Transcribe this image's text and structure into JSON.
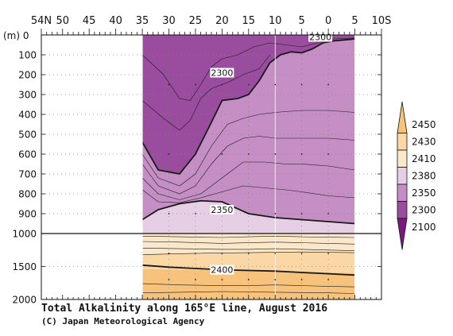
{
  "chart_data": {
    "type": "heatmap",
    "title": "Total Alkalinity along 165°E line, August 2016",
    "credit": "(C) Japan Meteorological Agency",
    "xaxis": {
      "label": "",
      "ticks": [
        {
          "value": 54,
          "label": "54N"
        },
        {
          "value": 50,
          "label": "50"
        },
        {
          "value": 45,
          "label": "45"
        },
        {
          "value": 40,
          "label": "40"
        },
        {
          "value": 35,
          "label": "35"
        },
        {
          "value": 30,
          "label": "30"
        },
        {
          "value": 25,
          "label": "25"
        },
        {
          "value": 20,
          "label": "20"
        },
        {
          "value": 15,
          "label": "15"
        },
        {
          "value": 10,
          "label": "10"
        },
        {
          "value": 5,
          "label": "5"
        },
        {
          "value": 0,
          "label": "0"
        },
        {
          "value": -5,
          "label": "5"
        },
        {
          "value": -10,
          "label": "10S"
        }
      ],
      "range": [
        54,
        -10
      ]
    },
    "yaxis": {
      "unit_label": "(m)",
      "ticks": [
        "0",
        "100",
        "200",
        "300",
        "400",
        "500",
        "600",
        "700",
        "800",
        "900",
        "1000",
        "1500",
        "2000"
      ],
      "range": [
        0,
        2000
      ],
      "break_at": 1000
    },
    "data_extent_lat": [
      35,
      -5
    ],
    "colorbar": {
      "levels": [
        "2450",
        "2430",
        "2410",
        "2380",
        "2350",
        "2300",
        "2100"
      ],
      "colors": [
        "#f6c27c",
        "#fad7a4",
        "#fbe7c9",
        "#e6cfe4",
        "#c58ec5",
        "#9a4c9e",
        "#7b1a7e"
      ]
    },
    "contour_labels": [
      {
        "lat": 1.5,
        "depth": 10,
        "text": "2300"
      },
      {
        "lat": 20,
        "depth": 190,
        "text": "2300"
      },
      {
        "lat": 20,
        "depth": 880,
        "text": "2350"
      },
      {
        "lat": 20,
        "depth": 1550,
        "text": "2400"
      }
    ],
    "sections": [
      {
        "name": "2300-core",
        "value": 2300,
        "boundary": [
          [
            35,
            0
          ],
          [
            35,
            540
          ],
          [
            32,
            680
          ],
          [
            28,
            700
          ],
          [
            25,
            600
          ],
          [
            22,
            440
          ],
          [
            20,
            330
          ],
          [
            17,
            320
          ],
          [
            15,
            300
          ],
          [
            13,
            230
          ],
          [
            11,
            140
          ],
          [
            9,
            100
          ],
          [
            7,
            85
          ],
          [
            5,
            90
          ],
          [
            3,
            70
          ],
          [
            1,
            40
          ],
          [
            -1,
            30
          ],
          [
            -3,
            25
          ],
          [
            -5,
            20
          ],
          [
            -5,
            0
          ]
        ]
      },
      {
        "name": "2350-interval",
        "value": 2350,
        "boundary": [
          [
            35,
            540
          ],
          [
            35,
            930
          ],
          [
            32,
            880
          ],
          [
            28,
            850
          ],
          [
            24,
            835
          ],
          [
            20,
            840
          ],
          [
            15,
            900
          ],
          [
            10,
            920
          ],
          [
            5,
            930
          ],
          [
            0,
            940
          ],
          [
            -5,
            950
          ],
          [
            -5,
            20
          ],
          [
            -3,
            25
          ],
          [
            -1,
            30
          ],
          [
            1,
            40
          ],
          [
            3,
            70
          ],
          [
            5,
            90
          ],
          [
            7,
            85
          ],
          [
            9,
            100
          ],
          [
            11,
            140
          ],
          [
            13,
            230
          ],
          [
            15,
            300
          ],
          [
            17,
            320
          ],
          [
            20,
            330
          ],
          [
            22,
            440
          ],
          [
            25,
            600
          ],
          [
            28,
            700
          ],
          [
            32,
            680
          ]
        ]
      },
      {
        "name": "2380-interval",
        "value": 2380,
        "boundary": [
          [
            35,
            930
          ],
          [
            35,
            1000
          ],
          [
            -5,
            1000
          ],
          [
            -5,
            950
          ],
          [
            0,
            940
          ],
          [
            5,
            930
          ],
          [
            10,
            920
          ],
          [
            15,
            900
          ],
          [
            20,
            840
          ],
          [
            24,
            835
          ],
          [
            28,
            850
          ],
          [
            32,
            880
          ]
        ]
      },
      {
        "name": "2410-deep",
        "value": 2410,
        "boundary": [
          [
            35,
            1000
          ],
          [
            35,
            1320
          ],
          [
            25,
            1300
          ],
          [
            15,
            1290
          ],
          [
            5,
            1280
          ],
          [
            -5,
            1290
          ],
          [
            -5,
            1000
          ]
        ]
      },
      {
        "name": "2430-deep",
        "value": 2430,
        "boundary": [
          [
            35,
            1320
          ],
          [
            35,
            1540
          ],
          [
            25,
            1550
          ],
          [
            15,
            1560
          ],
          [
            5,
            1580
          ],
          [
            -5,
            1600
          ],
          [
            -5,
            1290
          ],
          [
            5,
            1280
          ],
          [
            15,
            1290
          ],
          [
            25,
            1300
          ]
        ]
      },
      {
        "name": "2450-deep",
        "value": 2450,
        "boundary": [
          [
            35,
            1540
          ],
          [
            35,
            2000
          ],
          [
            -5,
            2000
          ],
          [
            -5,
            1600
          ],
          [
            5,
            1580
          ],
          [
            15,
            1560
          ],
          [
            25,
            1550
          ]
        ]
      }
    ],
    "contours": [
      {
        "name": "contour-2300",
        "bold": true,
        "points": [
          [
            35,
            540
          ],
          [
            32,
            680
          ],
          [
            28,
            700
          ],
          [
            25,
            600
          ],
          [
            22,
            440
          ],
          [
            20,
            330
          ],
          [
            17,
            320
          ],
          [
            15,
            300
          ],
          [
            13,
            230
          ],
          [
            11,
            140
          ],
          [
            9,
            100
          ],
          [
            7,
            85
          ],
          [
            5,
            90
          ],
          [
            3,
            70
          ],
          [
            1,
            40
          ],
          [
            -1,
            30
          ],
          [
            -3,
            25
          ],
          [
            -5,
            20
          ]
        ]
      },
      {
        "name": "contour-2350",
        "bold": true,
        "points": [
          [
            35,
            930
          ],
          [
            32,
            880
          ],
          [
            28,
            850
          ],
          [
            24,
            835
          ],
          [
            20,
            840
          ],
          [
            15,
            900
          ],
          [
            10,
            920
          ],
          [
            5,
            930
          ],
          [
            0,
            940
          ],
          [
            -5,
            950
          ]
        ]
      },
      {
        "name": "contour-2400",
        "bold": true,
        "points": [
          [
            35,
            1480
          ],
          [
            30,
            1510
          ],
          [
            25,
            1530
          ],
          [
            20,
            1550
          ],
          [
            15,
            1560
          ],
          [
            10,
            1570
          ],
          [
            5,
            1590
          ],
          [
            0,
            1610
          ],
          [
            -5,
            1630
          ]
        ]
      },
      {
        "name": "contour-thin-1",
        "bold": false,
        "points": [
          [
            35,
            100
          ],
          [
            31,
            200
          ],
          [
            28,
            320
          ],
          [
            26,
            330
          ],
          [
            24,
            250
          ],
          [
            22,
            160
          ],
          [
            20,
            120
          ],
          [
            17,
            100
          ],
          [
            14,
            60
          ],
          [
            11,
            40
          ],
          [
            8,
            50
          ],
          [
            5,
            60
          ],
          [
            2,
            40
          ],
          [
            -1,
            20
          ],
          [
            -5,
            15
          ]
        ]
      },
      {
        "name": "contour-thin-2",
        "bold": false,
        "points": [
          [
            35,
            330
          ],
          [
            31,
            420
          ],
          [
            28,
            480
          ],
          [
            26,
            430
          ],
          [
            24,
            320
          ],
          [
            22,
            270
          ],
          [
            19,
            240
          ],
          [
            16,
            200
          ],
          [
            13,
            170
          ],
          [
            11,
            100
          ]
        ]
      },
      {
        "name": "contour-thin-3",
        "bold": false,
        "points": [
          [
            35,
            600
          ],
          [
            32,
            720
          ],
          [
            28,
            760
          ],
          [
            25,
            700
          ],
          [
            22,
            560
          ],
          [
            19,
            450
          ],
          [
            16,
            420
          ],
          [
            13,
            400
          ],
          [
            10,
            390
          ],
          [
            5,
            380
          ],
          [
            0,
            380
          ],
          [
            -5,
            390
          ]
        ]
      },
      {
        "name": "contour-thin-4",
        "bold": false,
        "points": [
          [
            35,
            650
          ],
          [
            32,
            760
          ],
          [
            28,
            800
          ],
          [
            25,
            760
          ],
          [
            22,
            650
          ],
          [
            19,
            560
          ],
          [
            16,
            520
          ],
          [
            13,
            510
          ],
          [
            10,
            520
          ],
          [
            5,
            520
          ],
          [
            0,
            520
          ],
          [
            -5,
            530
          ]
        ]
      },
      {
        "name": "contour-thin-5",
        "bold": false,
        "points": [
          [
            35,
            720
          ],
          [
            32,
            800
          ],
          [
            28,
            830
          ],
          [
            24,
            800
          ],
          [
            20,
            720
          ],
          [
            16,
            640
          ],
          [
            12,
            640
          ],
          [
            8,
            650
          ],
          [
            5,
            650
          ],
          [
            0,
            660
          ],
          [
            -5,
            680
          ]
        ]
      },
      {
        "name": "contour-thin-6",
        "bold": false,
        "points": [
          [
            35,
            780
          ],
          [
            32,
            840
          ],
          [
            28,
            845
          ],
          [
            24,
            820
          ],
          [
            20,
            790
          ],
          [
            16,
            760
          ],
          [
            12,
            770
          ],
          [
            8,
            780
          ],
          [
            5,
            790
          ],
          [
            0,
            810
          ],
          [
            -5,
            820
          ]
        ]
      },
      {
        "name": "contour-thin-7",
        "bold": false,
        "points": [
          [
            35,
            1040
          ],
          [
            28,
            1050
          ],
          [
            20,
            1060
          ],
          [
            15,
            1050
          ],
          [
            10,
            1040
          ],
          [
            5,
            1050
          ],
          [
            0,
            1055
          ],
          [
            -5,
            1060
          ]
        ]
      },
      {
        "name": "contour-thin-8",
        "bold": false,
        "points": [
          [
            35,
            1120
          ],
          [
            28,
            1130
          ],
          [
            20,
            1150
          ],
          [
            15,
            1140
          ],
          [
            10,
            1130
          ],
          [
            5,
            1140
          ],
          [
            0,
            1150
          ],
          [
            -5,
            1160
          ]
        ]
      },
      {
        "name": "contour-thin-9",
        "bold": false,
        "points": [
          [
            35,
            1220
          ],
          [
            28,
            1230
          ],
          [
            20,
            1240
          ],
          [
            15,
            1240
          ],
          [
            10,
            1230
          ],
          [
            5,
            1240
          ],
          [
            0,
            1250
          ],
          [
            -5,
            1260
          ]
        ]
      },
      {
        "name": "contour-thin-10",
        "bold": false,
        "points": [
          [
            35,
            1320
          ],
          [
            25,
            1300
          ],
          [
            15,
            1290
          ],
          [
            5,
            1280
          ],
          [
            -5,
            1290
          ]
        ]
      },
      {
        "name": "contour-thin-11",
        "bold": false,
        "points": [
          [
            35,
            1760
          ],
          [
            28,
            1780
          ],
          [
            20,
            1790
          ],
          [
            15,
            1790
          ],
          [
            10,
            1780
          ],
          [
            5,
            1790
          ],
          [
            0,
            1800
          ],
          [
            -5,
            1810
          ]
        ]
      },
      {
        "name": "contour-thin-12",
        "bold": false,
        "points": [
          [
            35,
            1900
          ],
          [
            28,
            1890
          ],
          [
            20,
            1880
          ],
          [
            10,
            1890
          ],
          [
            0,
            1900
          ],
          [
            -5,
            1910
          ]
        ]
      }
    ],
    "stations_lat": [
      30,
      25,
      20,
      15,
      10,
      5,
      0
    ]
  }
}
